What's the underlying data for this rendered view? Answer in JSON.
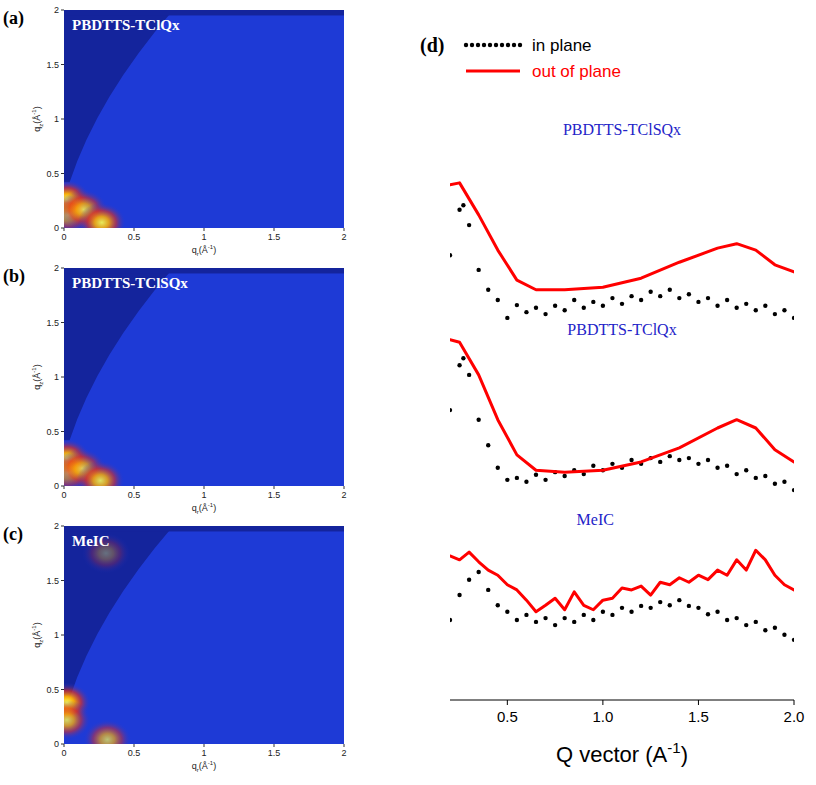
{
  "chart_data": [
    {
      "type": "heatmap",
      "panel": "(a)",
      "title": "PBDTTS-TClQx",
      "x_label": "qr(Å-1)",
      "y_label": "qz(Å-1)",
      "xlim": [
        0,
        2
      ],
      "ylim": [
        0,
        2
      ],
      "xticks": [
        0,
        0.5,
        1,
        1.5,
        2
      ],
      "yticks": [
        0,
        0.5,
        1,
        1.5,
        2
      ],
      "x": [
        0.02,
        0.03,
        0.14,
        0.27
      ],
      "y": [
        0.26,
        0.12,
        0.17,
        0.05
      ],
      "values": [
        1,
        0.7,
        0.8,
        0.9
      ],
      "marker": "glow"
    },
    {
      "type": "heatmap",
      "panel": "(b)",
      "title": "PBDTTS-TClSQx",
      "x_label": "qr(Å-1)",
      "y_label": "qz(Å-1)",
      "xlim": [
        0,
        2
      ],
      "ylim": [
        0,
        2
      ],
      "xticks": [
        0,
        0.5,
        1,
        1.5,
        2
      ],
      "yticks": [
        0,
        0.5,
        1,
        1.5,
        2
      ],
      "x": [
        0.02,
        0.03,
        0.13,
        0.26
      ],
      "y": [
        0.25,
        0.12,
        0.16,
        0.05
      ],
      "values": [
        0.95,
        0.7,
        0.75,
        0.85
      ],
      "marker": "glow"
    },
    {
      "type": "heatmap",
      "panel": "(c)",
      "title": "MeIC",
      "x_label": "qr(Å-1)",
      "y_label": "qz(Å-1)",
      "xlim": [
        0,
        2
      ],
      "ylim": [
        0,
        2
      ],
      "xticks": [
        0,
        0.5,
        1,
        1.5,
        2
      ],
      "yticks": [
        0,
        0.5,
        1,
        1.5,
        2
      ],
      "x": [
        0.02,
        0.02,
        0.31,
        0.3
      ],
      "y": [
        0.38,
        0.22,
        0.04,
        1.75
      ],
      "values": [
        1,
        0.8,
        0.7,
        0.35
      ],
      "marker": "glow"
    },
    {
      "type": "line",
      "panel": "(d)",
      "x_label": "Q vector (A-1)",
      "xlim": [
        0.2,
        2
      ],
      "ylim": [
        0,
        10
      ],
      "xticks": [
        0.5,
        {
          "value": 1,
          "label": "1.0"
        },
        1.5,
        {
          "value": 2,
          "label": "2.0"
        }
      ],
      "tick_labels": "x",
      "legend": "top-left",
      "series": [
        {
          "name": "in plane",
          "color": "#000000",
          "line_style": "dotted",
          "x": [
            0.2,
            0.25,
            0.27,
            0.3,
            0.35,
            0.4,
            0.45,
            0.5,
            0.55,
            0.6,
            0.65,
            0.7,
            0.75,
            0.8,
            0.85,
            0.9,
            0.95,
            1,
            1.05,
            1.1,
            1.15,
            1.2,
            1.25,
            1.3,
            1.35,
            1.4,
            1.45,
            1.5,
            1.55,
            1.6,
            1.65,
            1.7,
            1.75,
            1.8,
            1.85,
            1.9,
            1.95,
            2
          ],
          "values": [
            6.95,
            7.66,
            7.73,
            7.42,
            6.72,
            6.41,
            6.25,
            5.97,
            6.17,
            6.06,
            6.13,
            6.03,
            6.16,
            6.09,
            6.25,
            6.13,
            6.22,
            6.16,
            6.28,
            6.19,
            6.31,
            6.25,
            6.38,
            6.31,
            6.41,
            6.28,
            6.34,
            6.22,
            6.28,
            6.16,
            6.25,
            6.13,
            6.19,
            6.09,
            6.16,
            6.03,
            6.09,
            5.97
          ]
        },
        {
          "name": "out of plane",
          "color": "#ff0000",
          "line_style": "solid",
          "x": [
            0.2,
            0.25,
            0.35,
            0.45,
            0.55,
            0.65,
            0.8,
            1,
            1.2,
            1.4,
            1.6,
            1.7,
            1.8,
            1.9,
            2
          ],
          "values": [
            8.05,
            8.08,
            7.58,
            7.03,
            6.56,
            6.41,
            6.41,
            6.45,
            6.59,
            6.84,
            7.06,
            7.13,
            7.03,
            6.8,
            6.69
          ]
        },
        {
          "name": "in plane",
          "color": "#000000",
          "line_style": "dotted",
          "x": [
            0.2,
            0.25,
            0.27,
            0.3,
            0.35,
            0.4,
            0.45,
            0.5,
            0.55,
            0.6,
            0.65,
            0.7,
            0.75,
            0.8,
            0.85,
            0.9,
            0.95,
            1,
            1.05,
            1.1,
            1.15,
            1.2,
            1.25,
            1.3,
            1.35,
            1.4,
            1.45,
            1.5,
            1.55,
            1.6,
            1.65,
            1.7,
            1.75,
            1.8,
            1.85,
            1.9,
            1.95,
            2
          ],
          "values": [
            4.53,
            5.23,
            5.34,
            5.08,
            4.38,
            3.98,
            3.63,
            3.44,
            3.47,
            3.41,
            3.52,
            3.44,
            3.56,
            3.5,
            3.59,
            3.53,
            3.66,
            3.59,
            3.69,
            3.63,
            3.75,
            3.69,
            3.78,
            3.72,
            3.81,
            3.75,
            3.78,
            3.69,
            3.75,
            3.63,
            3.66,
            3.53,
            3.59,
            3.47,
            3.5,
            3.38,
            3.41,
            3.28
          ]
        },
        {
          "name": "out of plane",
          "color": "#ff0000",
          "line_style": "solid",
          "x": [
            0.2,
            0.25,
            0.35,
            0.45,
            0.55,
            0.65,
            0.8,
            1,
            1.2,
            1.4,
            1.6,
            1.7,
            1.8,
            1.9,
            2
          ],
          "values": [
            5.63,
            5.59,
            5.08,
            4.38,
            3.83,
            3.59,
            3.56,
            3.59,
            3.72,
            3.94,
            4.25,
            4.38,
            4.25,
            3.91,
            3.72
          ]
        },
        {
          "name": "in plane",
          "color": "#000000",
          "line_style": "dotted",
          "x": [
            0.2,
            0.25,
            0.3,
            0.35,
            0.4,
            0.45,
            0.5,
            0.55,
            0.6,
            0.65,
            0.7,
            0.75,
            0.8,
            0.85,
            0.9,
            0.95,
            1,
            1.05,
            1.1,
            1.15,
            1.2,
            1.25,
            1.3,
            1.35,
            1.4,
            1.45,
            1.5,
            1.55,
            1.6,
            1.65,
            1.7,
            1.75,
            1.8,
            1.85,
            1.9,
            1.95,
            2
          ],
          "values": [
            1.25,
            1.64,
            1.88,
            2.0,
            1.72,
            1.48,
            1.38,
            1.25,
            1.33,
            1.22,
            1.28,
            1.17,
            1.28,
            1.22,
            1.33,
            1.25,
            1.38,
            1.33,
            1.44,
            1.38,
            1.47,
            1.44,
            1.53,
            1.48,
            1.56,
            1.47,
            1.44,
            1.34,
            1.38,
            1.25,
            1.28,
            1.17,
            1.22,
            1.09,
            1.13,
            1.02,
            0.94
          ]
        },
        {
          "name": "out of plane",
          "color": "#ff0000",
          "line_style": "solid",
          "x": [
            0.2,
            0.25,
            0.3,
            0.35,
            0.4,
            0.45,
            0.5,
            0.55,
            0.6,
            0.65,
            0.7,
            0.75,
            0.8,
            0.85,
            0.9,
            0.95,
            1,
            1.05,
            1.1,
            1.15,
            1.2,
            1.25,
            1.3,
            1.35,
            1.4,
            1.45,
            1.5,
            1.55,
            1.6,
            1.65,
            1.7,
            1.75,
            1.8,
            1.85,
            1.9,
            1.95,
            2
          ],
          "values": [
            2.25,
            2.19,
            2.31,
            2.16,
            2.03,
            1.95,
            1.8,
            1.72,
            1.56,
            1.38,
            1.48,
            1.59,
            1.41,
            1.69,
            1.48,
            1.41,
            1.56,
            1.59,
            1.75,
            1.72,
            1.78,
            1.64,
            1.84,
            1.8,
            1.91,
            1.84,
            1.95,
            1.88,
            2.03,
            1.95,
            2.19,
            2.03,
            2.34,
            2.19,
            1.95,
            1.8,
            1.72
          ]
        }
      ],
      "annotations": [
        {
          "text": "PBDTTS-TClSQx",
          "x": 1.1,
          "y": 8.9,
          "color": "#2323c8"
        },
        {
          "text": "PBDTTS-TClQx",
          "x": 1.1,
          "y": 5.78,
          "color": "#2323c8"
        },
        {
          "text": "MeIC",
          "x": 0.96,
          "y": 2.81,
          "color": "#2323c8"
        }
      ]
    }
  ]
}
